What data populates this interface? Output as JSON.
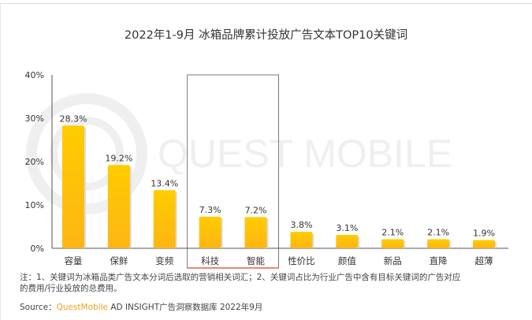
{
  "title": "2022年1-9月 冰箱品牌累计投放广告文本TOP10关键词",
  "watermark": "QUEST MOBILE",
  "note_line1": "注：1、关键词为冰箱品类广告文本分词后选取的营销相关词汇；2、关键词占比为行业广告中含有目标关键词的广告对应",
  "note_line2": "的费用/行业投放的总费用。",
  "source_label": "Source：",
  "source_brand": "QuestMobile",
  "source_text": " AD INSIGHT广告洞察数据库 2022年9月",
  "colors": {
    "bar_top": "#ffcc00",
    "bar_bottom": "#fdb515",
    "highlight_box": "#e53935",
    "brand": "#f4a21b"
  },
  "chart_data": {
    "type": "bar",
    "title": "2022年1-9月 冰箱品牌累计投放广告文本TOP10关键词",
    "categories": [
      "容量",
      "保鲜",
      "变频",
      "科技",
      "智能",
      "性价比",
      "颜值",
      "新品",
      "直降",
      "超薄"
    ],
    "values": [
      28.3,
      19.2,
      13.4,
      7.3,
      7.2,
      3.8,
      3.1,
      2.1,
      2.1,
      1.9
    ],
    "data_labels": [
      "28.3%",
      "19.2%",
      "13.4%",
      "7.3%",
      "7.2%",
      "3.8%",
      "3.1%",
      "2.1%",
      "2.1%",
      "1.9%"
    ],
    "yticks": [
      "0%",
      "10%",
      "20%",
      "30%",
      "40%"
    ],
    "ylim": [
      0,
      40
    ],
    "grid": false,
    "highlighted_categories": [
      "科技",
      "智能"
    ]
  }
}
